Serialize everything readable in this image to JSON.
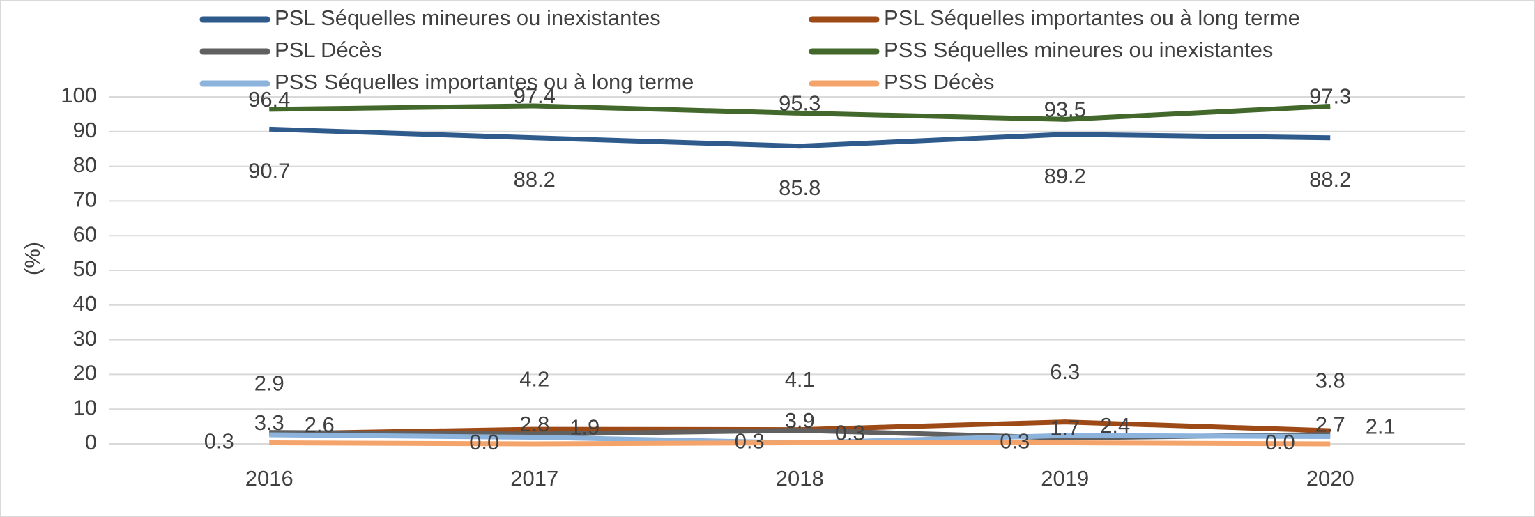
{
  "chart_data": {
    "type": "line",
    "categories": [
      "2016",
      "2017",
      "2018",
      "2019",
      "2020"
    ],
    "y_label": "(%)",
    "ylim": [
      0,
      100
    ],
    "yticks": [
      0,
      10,
      20,
      30,
      40,
      50,
      60,
      70,
      80,
      90,
      100
    ],
    "grid": true,
    "series": [
      {
        "name": "PSL Séquelles mineures ou inexistantes",
        "color": "#2f5b8c",
        "values": [
          90.7,
          88.2,
          85.8,
          89.2,
          88.2
        ]
      },
      {
        "name": "PSL Séquelles importantes ou à long terme",
        "color": "#9e4a17",
        "values": [
          2.9,
          4.2,
          4.1,
          6.3,
          3.8
        ]
      },
      {
        "name": "PSL Décès",
        "color": "#606060",
        "values": [
          3.3,
          2.8,
          3.9,
          1.7,
          2.7
        ]
      },
      {
        "name": "PSS Séquelles mineures ou inexistantes",
        "color": "#43682b",
        "values": [
          96.4,
          97.4,
          95.3,
          93.5,
          97.3
        ]
      },
      {
        "name": "PSS Séquelles importantes ou à long terme",
        "color": "#8cb3dc",
        "values": [
          2.6,
          1.9,
          0.3,
          2.4,
          2.1
        ]
      },
      {
        "name": "PSS Décès",
        "color": "#f4a46a",
        "values": [
          0.3,
          0.0,
          0.3,
          0.3,
          0.0
        ]
      }
    ]
  }
}
